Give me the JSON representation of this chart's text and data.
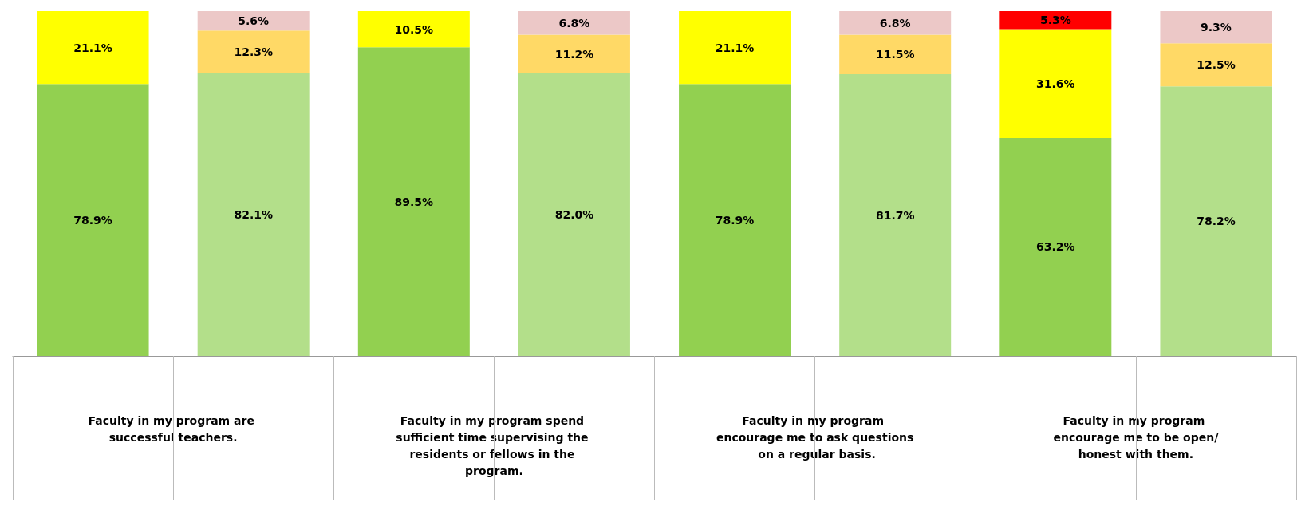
{
  "chart_data": {
    "type": "bar",
    "stacked": true,
    "categories": [
      "Faculty in my program are successful teachers.",
      null,
      "Faculty in my program spend sufficient time supervising the residents or fellows in the program.",
      null,
      "Faculty in my program encourage me to ask questions on a regular basis.",
      null,
      "Faculty in my program encourage me to be open/honest with them.",
      null
    ],
    "series": [
      {
        "color": "#92d050",
        "values": [
          78.9,
          null,
          89.5,
          null,
          78.9,
          null,
          63.2,
          null
        ],
        "value_labels": [
          "78.9%",
          null,
          "89.5%",
          null,
          "78.9%",
          null,
          "63.2%",
          null
        ]
      },
      {
        "color": "#ffff00",
        "values": [
          21.1,
          null,
          10.5,
          null,
          21.1,
          null,
          31.6,
          null
        ],
        "value_labels": [
          "21.1%",
          null,
          "10.5%",
          null,
          "21.1%",
          null,
          "31.6%",
          null
        ]
      },
      {
        "color": "#ff0000",
        "values": [
          null,
          null,
          null,
          null,
          null,
          null,
          5.3,
          null
        ],
        "value_labels": [
          null,
          null,
          null,
          null,
          null,
          null,
          "5.3%",
          null
        ]
      },
      {
        "color": "#b3df8a",
        "values": [
          null,
          82.1,
          null,
          82.0,
          null,
          81.7,
          null,
          78.2
        ],
        "value_labels": [
          null,
          "82.1%",
          null,
          "82.0%",
          null,
          "81.7%",
          null,
          "78.2%"
        ]
      },
      {
        "color": "#ffd966",
        "values": [
          null,
          12.3,
          null,
          11.2,
          null,
          11.5,
          null,
          12.5
        ],
        "value_labels": [
          null,
          "12.3%",
          null,
          "11.2%",
          null,
          "11.5%",
          null,
          "12.5%"
        ]
      },
      {
        "color": "#ecc8c7",
        "values": [
          null,
          5.6,
          null,
          6.8,
          null,
          6.8,
          null,
          9.3
        ],
        "value_labels": [
          null,
          "5.6%",
          null,
          "6.8%",
          null,
          "6.8%",
          null,
          "9.3%"
        ]
      }
    ],
    "ylim": [
      0,
      100
    ],
    "tick_labels": "x"
  }
}
